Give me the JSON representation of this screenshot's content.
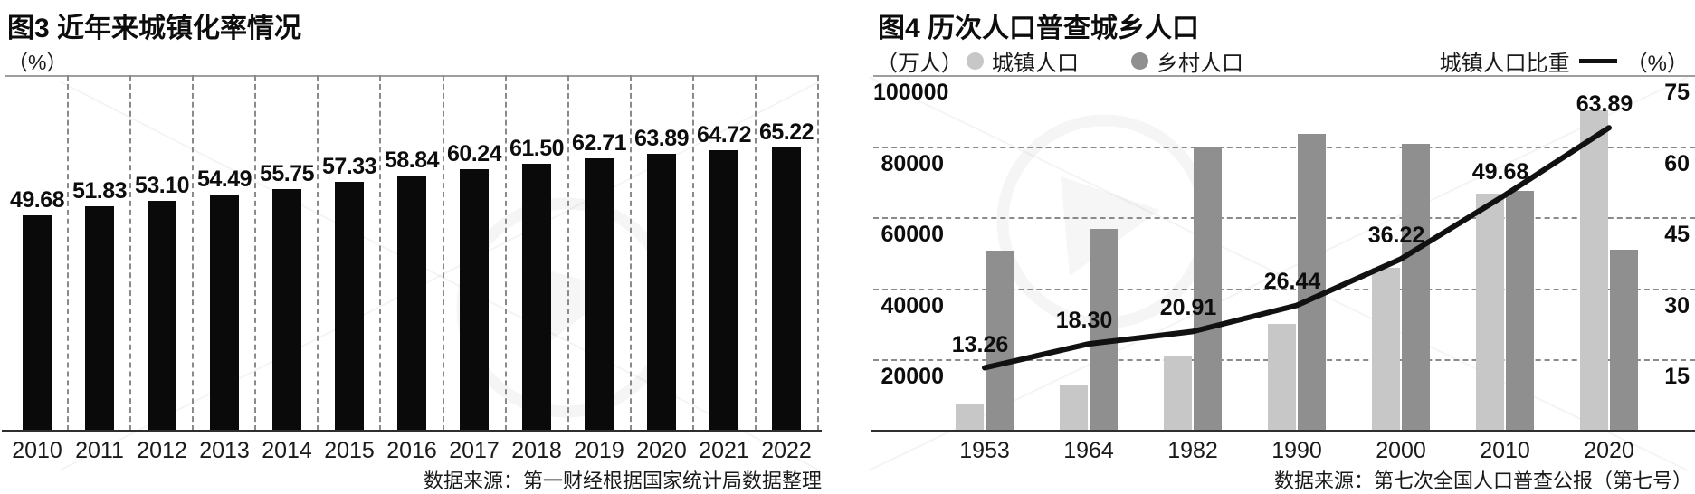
{
  "figure3": {
    "title": "图3 近年来城镇化率情况",
    "y_unit": "（%）",
    "source": "数据来源：第一财经根据国家统计局数据整理"
  },
  "figure4": {
    "title": "图4  历次人口普查城乡人口",
    "y_unit_left": "（万人）",
    "y_unit_right": "（%）",
    "legend": {
      "urban_label": "城镇人口",
      "rural_label": "乡村人口",
      "share_label": "城镇人口比重"
    },
    "source": "数据来源：第七次全国人口普查公报（第七号）"
  },
  "chart_data": [
    {
      "id": "figure3",
      "type": "bar",
      "title": "图3 近年来城镇化率情况",
      "ylabel": "（%）",
      "categories": [
        "2010",
        "2011",
        "2012",
        "2013",
        "2014",
        "2015",
        "2016",
        "2017",
        "2018",
        "2019",
        "2020",
        "2021",
        "2022"
      ],
      "values": [
        49.68,
        51.83,
        53.1,
        54.49,
        55.75,
        57.33,
        58.84,
        60.24,
        61.5,
        62.71,
        63.89,
        64.72,
        65.22
      ],
      "value_labels": [
        "49.68",
        "51.83",
        "53.10",
        "54.49",
        "55.75",
        "57.33",
        "58.84",
        "60.24",
        "61.50",
        "62.71",
        "63.89",
        "64.72",
        "65.22"
      ],
      "bar_color": "#0a0a0a",
      "ylim": [
        0,
        82
      ],
      "grid": "vertical-dashed",
      "legend_position": "none",
      "source": "数据来源：第一财经根据国家统计局数据整理"
    },
    {
      "id": "figure4",
      "type": "bar",
      "subtype": "grouped-bars-with-line",
      "title": "图4 历次人口普查城乡人口",
      "categories": [
        "1953",
        "1964",
        "1982",
        "1990",
        "2000",
        "2010",
        "2020"
      ],
      "series": [
        {
          "name": "城镇人口",
          "type": "bar",
          "axis": "left",
          "color": "#c7c7c7",
          "values": [
            7730,
            12710,
            21080,
            29970,
            45840,
            66560,
            90200
          ],
          "estimated_from_gridlines": true
        },
        {
          "name": "乡村人口",
          "type": "bar",
          "axis": "left",
          "color": "#8f8f8f",
          "values": [
            50530,
            56750,
            79740,
            83400,
            80740,
            67420,
            50980
          ],
          "estimated_from_gridlines": true
        },
        {
          "name": "城镇人口比重",
          "type": "line",
          "axis": "right",
          "color": "#111111",
          "values": [
            13.26,
            18.3,
            20.91,
            26.44,
            36.22,
            49.68,
            63.89
          ],
          "value_labels": [
            "13.26",
            "18.30",
            "20.91",
            "26.44",
            "36.22",
            "49.68",
            "63.89"
          ]
        }
      ],
      "left_axis": {
        "unit": "（万人）",
        "ticks": [
          100000,
          80000,
          60000,
          40000,
          20000
        ],
        "range": [
          0,
          100000
        ]
      },
      "right_axis": {
        "unit": "（%）",
        "ticks": [
          75,
          60,
          45,
          30,
          15
        ],
        "range": [
          0,
          75
        ]
      },
      "grid": "horizontal-dashed",
      "legend_position": "top",
      "source": "数据来源：第七次全国人口普查公报（第七号）"
    }
  ]
}
